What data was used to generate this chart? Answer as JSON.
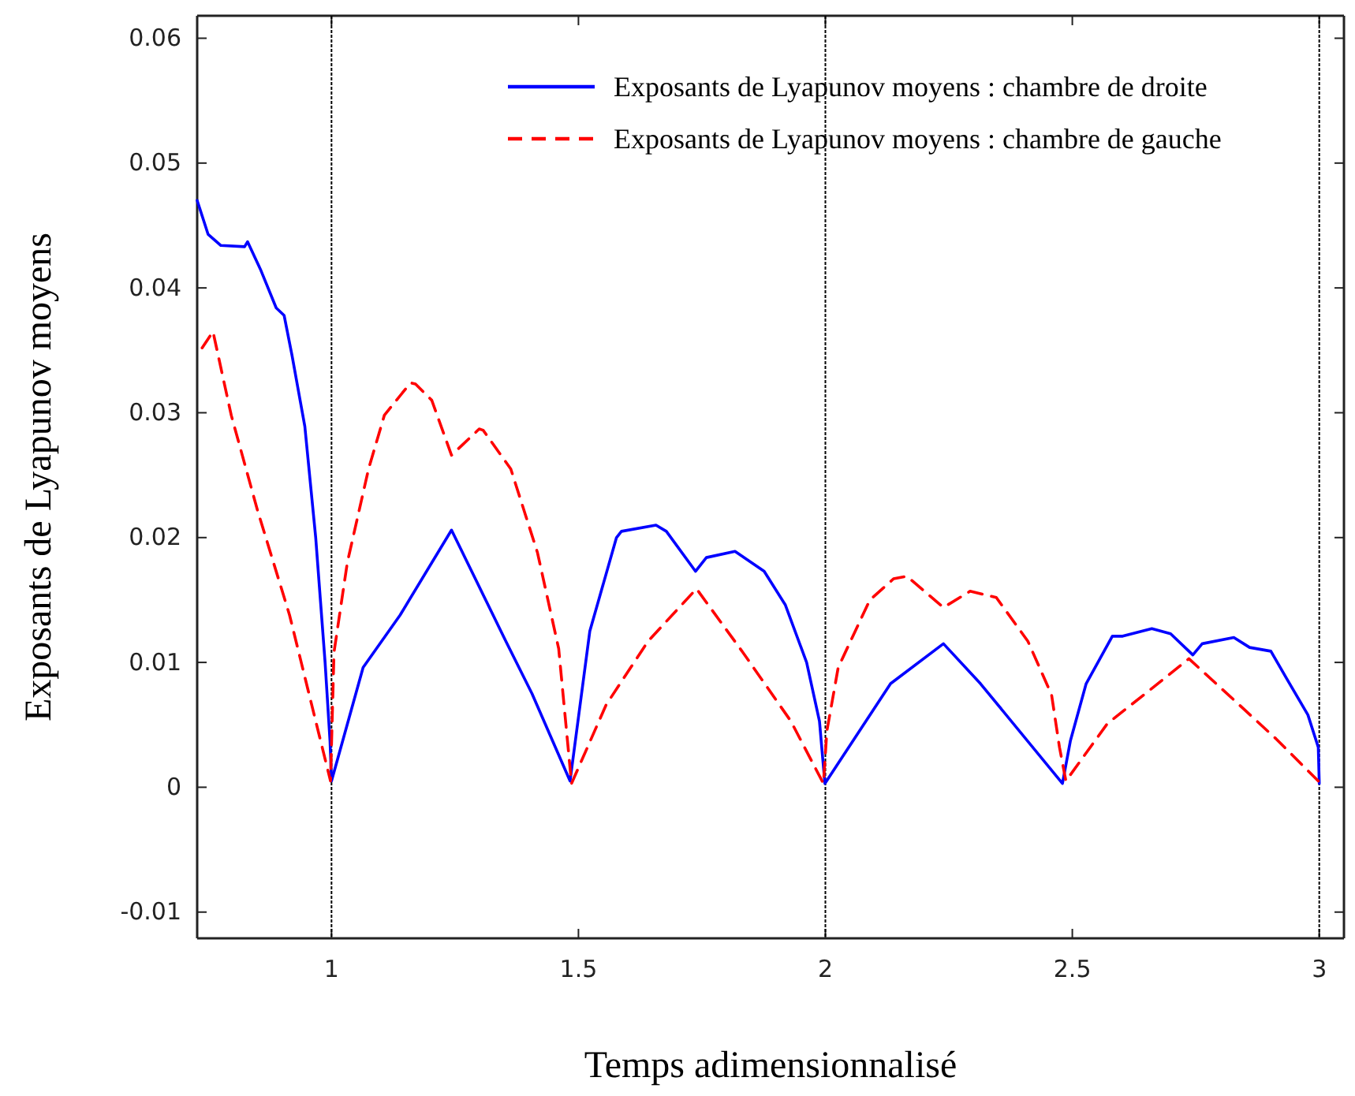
{
  "chart_data": {
    "type": "line",
    "xlabel": "Temps adimensionnalisé",
    "ylabel": "Exposants de Lyapunov moyens",
    "xlim": [
      0.728,
      3.05
    ],
    "ylim": [
      -0.0121,
      0.0618
    ],
    "xticks": [
      1,
      1.5,
      2,
      2.5,
      3
    ],
    "yticks": [
      -0.01,
      0,
      0.01,
      0.02,
      0.03,
      0.04,
      0.05,
      0.06
    ],
    "legend": "top right",
    "grid": false,
    "marker": "none",
    "series": [
      {
        "name": "Exposants de Lyapunov moyens : chambre de droite",
        "color": "#0000ff",
        "line_style": "solid",
        "x": [
          0.728,
          0.75,
          0.776,
          0.824,
          0.83,
          0.856,
          0.888,
          0.904,
          0.92,
          0.946,
          0.968,
          0.987,
          0.997,
          1.0,
          1.064,
          1.139,
          1.243,
          1.353,
          1.406,
          1.483,
          1.523,
          1.577,
          1.587,
          1.657,
          1.678,
          1.737,
          1.759,
          1.817,
          1.876,
          1.919,
          1.962,
          1.988,
          1.999,
          2.132,
          2.239,
          2.314,
          2.48,
          2.496,
          2.528,
          2.581,
          2.602,
          2.661,
          2.699,
          2.744,
          2.763,
          2.827,
          2.859,
          2.902,
          2.934,
          2.977,
          2.998,
          3.0
        ],
        "values": [
          0.047,
          0.0443,
          0.0434,
          0.0433,
          0.0437,
          0.0415,
          0.0384,
          0.0378,
          0.0346,
          0.0289,
          0.02,
          0.01,
          0.0037,
          0.0005,
          0.0096,
          0.0138,
          0.0206,
          0.0117,
          0.0075,
          0.0005,
          0.0125,
          0.02,
          0.0205,
          0.021,
          0.0205,
          0.0173,
          0.0184,
          0.0189,
          0.0173,
          0.0146,
          0.01,
          0.0053,
          0.0003,
          0.0083,
          0.0115,
          0.0083,
          0.0003,
          0.0037,
          0.0083,
          0.0121,
          0.0121,
          0.0127,
          0.0123,
          0.0106,
          0.0115,
          0.012,
          0.0112,
          0.0109,
          0.0087,
          0.0058,
          0.0032,
          0.0003
        ]
      },
      {
        "name": "Exposants de Lyapunov moyens : chambre de gauche",
        "color": "#ff0000",
        "line_style": "dashed",
        "x": [
          0.738,
          0.76,
          0.797,
          0.85,
          0.915,
          0.968,
          0.998,
          1.005,
          1.032,
          1.075,
          1.107,
          1.16,
          1.17,
          1.203,
          1.243,
          1.299,
          1.307,
          1.363,
          1.417,
          1.46,
          1.486,
          1.556,
          1.641,
          1.739,
          1.833,
          1.93,
          1.996,
          2.003,
          2.026,
          2.09,
          2.138,
          2.165,
          2.239,
          2.293,
          2.346,
          2.41,
          2.458,
          2.474,
          2.487,
          2.571,
          2.667,
          2.736,
          2.827,
          2.912,
          2.998
        ],
        "values": [
          0.0352,
          0.0365,
          0.0298,
          0.0222,
          0.0138,
          0.0053,
          0.0005,
          0.0108,
          0.018,
          0.0255,
          0.0298,
          0.0324,
          0.0323,
          0.031,
          0.0266,
          0.0287,
          0.0286,
          0.0255,
          0.0188,
          0.0111,
          0.0003,
          0.0066,
          0.0117,
          0.0159,
          0.0108,
          0.0053,
          0.0003,
          0.0045,
          0.0096,
          0.015,
          0.0167,
          0.0169,
          0.0144,
          0.0157,
          0.0152,
          0.0117,
          0.0074,
          0.0032,
          0.0005,
          0.0051,
          0.0081,
          0.0103,
          0.007,
          0.0039,
          0.0005
        ]
      }
    ],
    "ref_lines": [
      {
        "axis": "x",
        "value": 1,
        "color": "#000000",
        "line_style": "dotted"
      },
      {
        "axis": "x",
        "value": 2,
        "color": "#000000",
        "line_style": "dotted"
      },
      {
        "axis": "x",
        "value": 3,
        "color": "#000000",
        "line_style": "dotted"
      }
    ]
  }
}
